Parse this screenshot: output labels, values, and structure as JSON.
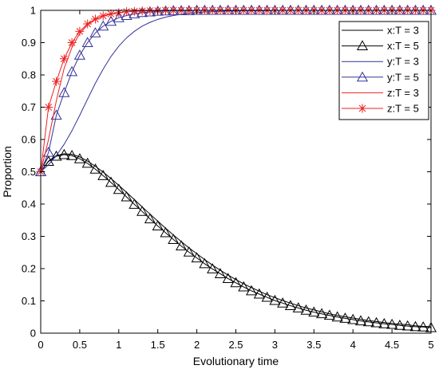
{
  "chart_data": {
    "type": "line",
    "title": "",
    "xlabel": "Evolutionary time",
    "ylabel": "Proportion",
    "xlim": [
      0,
      5
    ],
    "ylim": [
      0,
      1
    ],
    "xticks": [
      "0",
      "0.5",
      "1",
      "1.5",
      "2",
      "2.5",
      "3",
      "3.5",
      "4",
      "4.5",
      "5"
    ],
    "yticks": [
      "0",
      "0.1",
      "0.2",
      "0.3",
      "0.4",
      "0.5",
      "0.6",
      "0.7",
      "0.8",
      "0.9",
      "1"
    ],
    "grid": false,
    "legend_position": "top-right",
    "x": [
      0,
      0.1,
      0.2,
      0.3,
      0.4,
      0.5,
      0.6,
      0.7,
      0.8,
      0.9,
      1.0,
      1.1,
      1.2,
      1.3,
      1.4,
      1.5,
      1.6,
      1.7,
      1.8,
      1.9,
      2.0,
      2.1,
      2.2,
      2.3,
      2.4,
      2.5,
      2.6,
      2.7,
      2.8,
      2.9,
      3.0,
      3.1,
      3.2,
      3.3,
      3.4,
      3.5,
      3.6,
      3.7,
      3.8,
      3.9,
      4.0,
      4.1,
      4.2,
      4.3,
      4.4,
      4.5,
      4.6,
      4.7,
      4.8,
      4.9,
      5.0
    ],
    "series": [
      {
        "name": "x:T = 3",
        "color": "#000000",
        "marker": "none",
        "values": [
          0.5,
          0.533,
          0.55,
          0.556,
          0.554,
          0.546,
          0.533,
          0.517,
          0.499,
          0.479,
          0.458,
          0.436,
          0.414,
          0.391,
          0.369,
          0.347,
          0.325,
          0.304,
          0.284,
          0.264,
          0.246,
          0.228,
          0.211,
          0.195,
          0.18,
          0.166,
          0.153,
          0.141,
          0.13,
          0.119,
          0.11,
          0.101,
          0.093,
          0.085,
          0.078,
          0.072,
          0.066,
          0.06,
          0.055,
          0.051,
          0.047,
          0.043,
          0.039,
          0.036,
          0.033,
          0.03,
          0.028,
          0.026,
          0.023,
          0.021,
          0.02
        ]
      },
      {
        "name": "x:T = 5",
        "color": "#000000",
        "marker": "triangle",
        "values": [
          0.5,
          0.532,
          0.548,
          0.553,
          0.55,
          0.54,
          0.526,
          0.508,
          0.488,
          0.467,
          0.445,
          0.422,
          0.399,
          0.377,
          0.354,
          0.332,
          0.311,
          0.29,
          0.27,
          0.251,
          0.233,
          0.215,
          0.199,
          0.184,
          0.169,
          0.156,
          0.143,
          0.131,
          0.121,
          0.111,
          0.101,
          0.093,
          0.085,
          0.078,
          0.071,
          0.065,
          0.06,
          0.055,
          0.05,
          0.046,
          0.042,
          0.038,
          0.035,
          0.032,
          0.029,
          0.027,
          0.024,
          0.022,
          0.02,
          0.019,
          0.017
        ]
      },
      {
        "name": "y:T = 3",
        "color": "#33339a",
        "marker": "none",
        "values": [
          0.5,
          0.522,
          0.55,
          0.585,
          0.627,
          0.675,
          0.725,
          0.774,
          0.818,
          0.857,
          0.889,
          0.915,
          0.935,
          0.951,
          0.963,
          0.972,
          0.979,
          0.984,
          0.988,
          0.991,
          0.993,
          0.995,
          0.996,
          0.997,
          0.998,
          0.998,
          0.999,
          0.999,
          0.999,
          0.999,
          1.0,
          1.0,
          1.0,
          1.0,
          1.0,
          1.0,
          1.0,
          1.0,
          1.0,
          1.0,
          1.0,
          1.0,
          1.0,
          1.0,
          1.0,
          1.0,
          1.0,
          1.0,
          1.0,
          1.0,
          1.0
        ]
      },
      {
        "name": "y:T = 5",
        "color": "#33339a",
        "marker": "triangle",
        "values": [
          0.5,
          0.56,
          0.675,
          0.745,
          0.81,
          0.861,
          0.9,
          0.93,
          0.951,
          0.966,
          0.977,
          0.984,
          0.989,
          0.993,
          0.995,
          0.997,
          0.998,
          0.999,
          0.999,
          0.999,
          1.0,
          1.0,
          1.0,
          1.0,
          1.0,
          1.0,
          1.0,
          1.0,
          1.0,
          1.0,
          1.0,
          1.0,
          1.0,
          1.0,
          1.0,
          1.0,
          1.0,
          1.0,
          1.0,
          1.0,
          1.0,
          1.0,
          1.0,
          1.0,
          1.0,
          1.0,
          1.0,
          1.0,
          1.0,
          1.0,
          1.0
        ]
      },
      {
        "name": "z:T = 3",
        "color": "#ee2020",
        "marker": "none",
        "values": [
          0.5,
          0.6,
          0.72,
          0.82,
          0.885,
          0.928,
          0.955,
          0.972,
          0.983,
          0.989,
          0.993,
          0.996,
          0.997,
          0.998,
          0.999,
          0.999,
          1.0,
          1.0,
          1.0,
          1.0,
          1.0,
          1.0,
          1.0,
          1.0,
          1.0,
          1.0,
          1.0,
          1.0,
          1.0,
          1.0,
          1.0,
          1.0,
          1.0,
          1.0,
          1.0,
          1.0,
          1.0,
          1.0,
          1.0,
          1.0,
          1.0,
          1.0,
          1.0,
          1.0,
          1.0,
          1.0,
          1.0,
          1.0,
          1.0,
          1.0,
          1.0
        ]
      },
      {
        "name": "z:T = 5",
        "color": "#ee2020",
        "marker": "star",
        "values": [
          0.5,
          0.7,
          0.78,
          0.85,
          0.9,
          0.935,
          0.958,
          0.973,
          0.983,
          0.989,
          0.993,
          0.996,
          0.997,
          0.998,
          0.999,
          0.999,
          1.0,
          1.0,
          1.0,
          1.0,
          1.0,
          1.0,
          1.0,
          1.0,
          1.0,
          1.0,
          1.0,
          1.0,
          1.0,
          1.0,
          1.0,
          1.0,
          1.0,
          1.0,
          1.0,
          1.0,
          1.0,
          1.0,
          1.0,
          1.0,
          1.0,
          1.0,
          1.0,
          1.0,
          1.0,
          1.0,
          1.0,
          1.0,
          1.0,
          1.0,
          1.0
        ]
      }
    ]
  }
}
